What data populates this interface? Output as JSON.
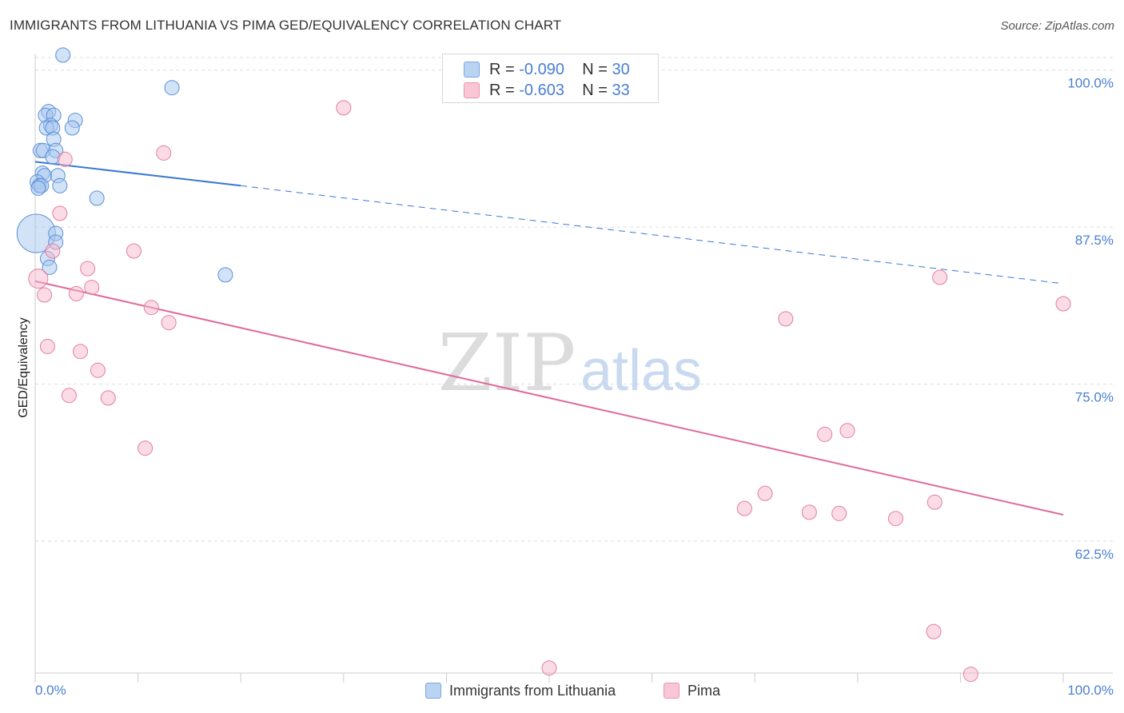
{
  "title": "IMMIGRANTS FROM LITHUANIA VS PIMA GED/EQUIVALENCY CORRELATION CHART",
  "source": "Source: ZipAtlas.com",
  "watermark": {
    "zip": "ZIP",
    "atlas": "atlas"
  },
  "legend_top": {
    "rows": [
      {
        "r_label": "R = ",
        "r_value": "-0.090",
        "n_label": "N = ",
        "n_value": "30"
      },
      {
        "r_label": "R = ",
        "r_value": "-0.603",
        "n_label": "N = ",
        "n_value": "33"
      }
    ]
  },
  "legend_bottom": [
    {
      "label": "Immigrants from Lithuania"
    },
    {
      "label": "Pima"
    }
  ],
  "colors": {
    "blue_fill": "#a8c8f0",
    "blue_stroke": "#5b8fd8",
    "blue_line": "#3b78d4",
    "pink_fill": "#f7b8cb",
    "pink_stroke": "#e27fa0",
    "pink_line": "#e0699a",
    "tick_label": "#4a7fd1",
    "grid": "#dddddd"
  },
  "chart_data": {
    "type": "scatter",
    "title": "IMMIGRANTS FROM LITHUANIA VS PIMA GED/EQUIVALENCY CORRELATION CHART",
    "xlabel": "",
    "ylabel": "GED/Equivalency",
    "xlim": [
      0,
      100
    ],
    "ylim": [
      52.0,
      101.0
    ],
    "x_tick_labels": [
      "0.0%",
      "100.0%"
    ],
    "y_ticks": [
      62.5,
      75.0,
      87.5,
      100.0
    ],
    "y_tick_labels": [
      "62.5%",
      "75.0%",
      "87.5%",
      "100.0%"
    ],
    "grid": true,
    "legend_position": "top-center",
    "series": [
      {
        "name": "Immigrants from Lithuania",
        "color": "#5b8fd8",
        "points": [
          [
            2.7,
            101.2,
            9
          ],
          [
            13.3,
            98.6,
            9
          ],
          [
            1.3,
            96.7,
            9
          ],
          [
            1.0,
            96.4,
            9
          ],
          [
            1.8,
            96.4,
            9
          ],
          [
            3.9,
            96.0,
            9
          ],
          [
            1.5,
            95.6,
            9
          ],
          [
            1.1,
            95.4,
            9
          ],
          [
            3.6,
            95.4,
            9
          ],
          [
            1.7,
            95.4,
            9
          ],
          [
            1.8,
            94.5,
            9
          ],
          [
            0.5,
            93.6,
            9
          ],
          [
            0.8,
            93.6,
            9
          ],
          [
            2.0,
            93.6,
            9
          ],
          [
            1.7,
            93.1,
            9
          ],
          [
            0.7,
            91.8,
            9
          ],
          [
            0.9,
            91.6,
            9
          ],
          [
            2.2,
            91.6,
            9
          ],
          [
            0.2,
            91.1,
            9
          ],
          [
            0.4,
            90.8,
            9
          ],
          [
            2.4,
            90.8,
            9
          ],
          [
            0.6,
            90.8,
            9
          ],
          [
            0.3,
            90.6,
            9
          ],
          [
            6.0,
            89.8,
            9
          ],
          [
            0.1,
            87.0,
            24
          ],
          [
            2.0,
            87.0,
            9
          ],
          [
            2.0,
            86.3,
            9
          ],
          [
            1.2,
            85.0,
            9
          ],
          [
            1.4,
            84.3,
            9
          ],
          [
            18.5,
            83.7,
            9
          ]
        ]
      },
      {
        "name": "Pima",
        "color": "#e27fa0",
        "points": [
          [
            30.0,
            97.0,
            9
          ],
          [
            12.5,
            93.4,
            9
          ],
          [
            2.9,
            92.9,
            9
          ],
          [
            2.4,
            88.6,
            9
          ],
          [
            1.7,
            85.6,
            9
          ],
          [
            9.6,
            85.6,
            9
          ],
          [
            5.1,
            84.2,
            9
          ],
          [
            0.3,
            83.4,
            12
          ],
          [
            5.5,
            82.7,
            9
          ],
          [
            4.0,
            82.2,
            9
          ],
          [
            0.9,
            82.1,
            9
          ],
          [
            88.0,
            83.5,
            9
          ],
          [
            100.0,
            81.4,
            9
          ],
          [
            11.3,
            81.1,
            9
          ],
          [
            13.0,
            79.9,
            9
          ],
          [
            73.0,
            80.2,
            9
          ],
          [
            1.2,
            78.0,
            9
          ],
          [
            4.4,
            77.6,
            9
          ],
          [
            6.1,
            76.1,
            9
          ],
          [
            3.3,
            74.1,
            9
          ],
          [
            7.1,
            73.9,
            9
          ],
          [
            10.7,
            69.9,
            9
          ],
          [
            76.8,
            71.0,
            9
          ],
          [
            79.0,
            71.3,
            9
          ],
          [
            71.0,
            66.3,
            9
          ],
          [
            69.0,
            65.1,
            9
          ],
          [
            87.5,
            65.6,
            9
          ],
          [
            75.3,
            64.8,
            9
          ],
          [
            78.2,
            64.7,
            9
          ],
          [
            83.7,
            64.3,
            9
          ],
          [
            87.4,
            55.3,
            9
          ],
          [
            50.0,
            52.4,
            9
          ],
          [
            91.0,
            51.9,
            9
          ]
        ]
      }
    ],
    "trend_lines": [
      {
        "series": "Immigrants from Lithuania",
        "solid": [
          [
            0,
            92.7
          ],
          [
            20,
            90.8
          ]
        ],
        "dashed": [
          [
            20,
            90.8
          ],
          [
            100,
            83.0
          ]
        ]
      },
      {
        "series": "Pima",
        "solid": [
          [
            0,
            83.2
          ],
          [
            100,
            64.6
          ]
        ]
      }
    ]
  }
}
